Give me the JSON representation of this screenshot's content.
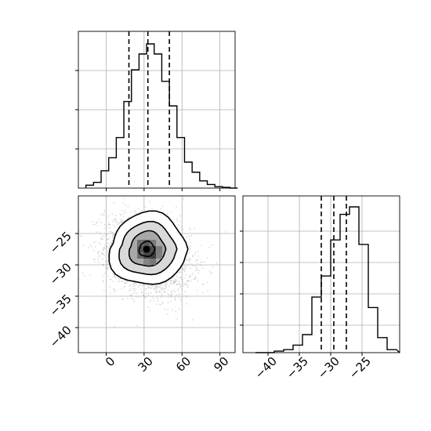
{
  "chart_data": {
    "type": "corner",
    "panels": [
      {
        "id": "marginal_x",
        "type": "histogram",
        "x_range": [
          -22,
          102
        ],
        "x_ticks": [
          0,
          30,
          60,
          90
        ],
        "bins_x_edges": [
          -16,
          -10,
          -4,
          2,
          8,
          14,
          20,
          26,
          32,
          38,
          44,
          50,
          56,
          62,
          68,
          74,
          80,
          86,
          92,
          98,
          104
        ],
        "counts": [
          0.02,
          0.04,
          0.12,
          0.21,
          0.35,
          0.6,
          0.82,
          0.93,
          1.0,
          0.93,
          0.74,
          0.57,
          0.35,
          0.18,
          0.11,
          0.05,
          0.025,
          0.01,
          0.005,
          0.0
        ],
        "quantiles": [
          18,
          33,
          50
        ]
      },
      {
        "id": "joint",
        "type": "2d-histogram-contour",
        "x_range": [
          -22,
          102
        ],
        "y_range": [
          -44,
          -19
        ],
        "x_ticks": [
          0,
          30,
          60,
          90
        ],
        "x_tick_labels": [
          "0",
          "30",
          "60",
          "90"
        ],
        "y_ticks": [
          -25,
          -30,
          -35,
          -40
        ],
        "y_tick_labels": [
          "−25",
          "−30",
          "−35",
          "−40"
        ],
        "point_cloud_center": [
          33,
          -28.5
        ],
        "point_cloud_spread": [
          17,
          3.1
        ],
        "peak": [
          32,
          -27.5
        ]
      },
      {
        "id": "marginal_y",
        "type": "histogram",
        "x_range": [
          -44,
          -19
        ],
        "x_ticks": [
          -40,
          -35,
          -30,
          -25
        ],
        "x_tick_labels": [
          "−40",
          "−35",
          "−30",
          "−25"
        ],
        "bins_x_edges": [
          -42,
          -40.5,
          -39,
          -37.5,
          -36,
          -34.5,
          -33,
          -31.5,
          -30,
          -28.5,
          -27,
          -25.5,
          -24,
          -22.5,
          -21,
          -19.5
        ],
        "counts": [
          0.0,
          0.0,
          0.01,
          0.02,
          0.05,
          0.12,
          0.37,
          0.51,
          0.75,
          0.92,
          0.97,
          0.72,
          0.3,
          0.1,
          0.02
        ],
        "quantiles": [
          -31.5,
          -29.5,
          -27.5
        ]
      }
    ]
  }
}
